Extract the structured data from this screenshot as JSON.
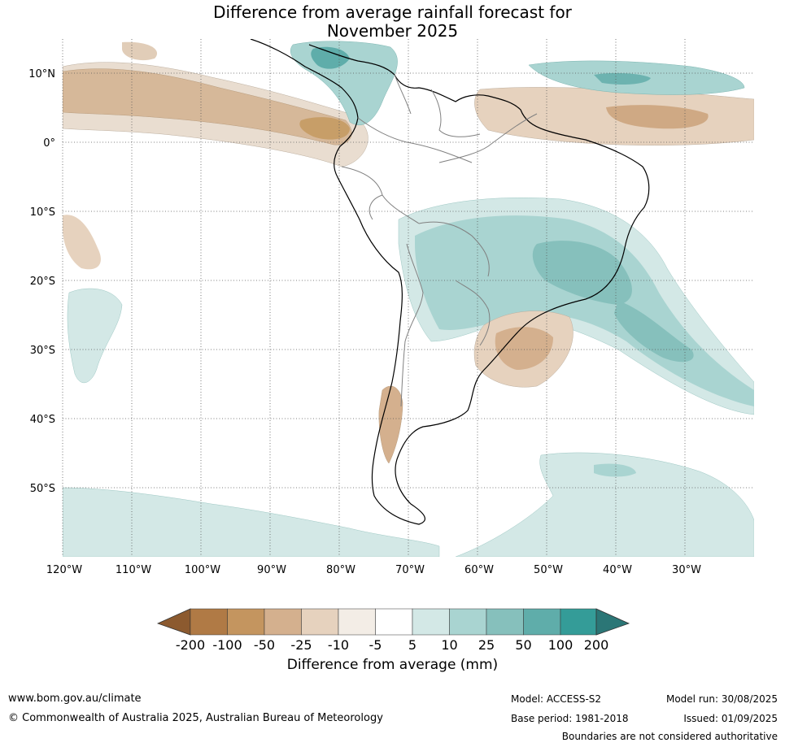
{
  "title": {
    "line1": "Difference from average rainfall forecast for",
    "line2": "November 2025"
  },
  "map": {
    "region": "South America",
    "lon_labels": [
      "120°W",
      "110°W",
      "100°W",
      "90°W",
      "80°W",
      "70°W",
      "60°W",
      "50°W",
      "40°W",
      "30°W"
    ],
    "lat_labels": [
      "10°N",
      "0°",
      "10°S",
      "20°S",
      "30°S",
      "40°S",
      "50°S"
    ],
    "gridlines": true,
    "gridline_style": "dotted"
  },
  "legend": {
    "title": "Difference from average (mm)",
    "tick_labels": [
      "-200",
      "-100",
      "-50",
      "-25",
      "-10",
      "-5",
      "5",
      "10",
      "25",
      "50",
      "100",
      "200"
    ],
    "colors": [
      "#8c5a2f",
      "#b07a45",
      "#c4955f",
      "#d4b08e",
      "#e6d2be",
      "#f3ede6",
      "#ffffff",
      "#d3e8e6",
      "#a9d4d1",
      "#86c0bc",
      "#5fadaa",
      "#349c98",
      "#2b7676"
    ]
  },
  "footer": {
    "website": "www.bom.gov.au/climate",
    "copyright": "© Commonwealth of Australia 2025, Australian Bureau of Meteorology",
    "model": "Model: ACCESS-S2",
    "base_period": "Base period: 1981-2018",
    "model_run": "Model run: 30/08/2025",
    "issued": "Issued: 01/09/2025",
    "disclaimer": "Boundaries are not considered authoritative"
  }
}
